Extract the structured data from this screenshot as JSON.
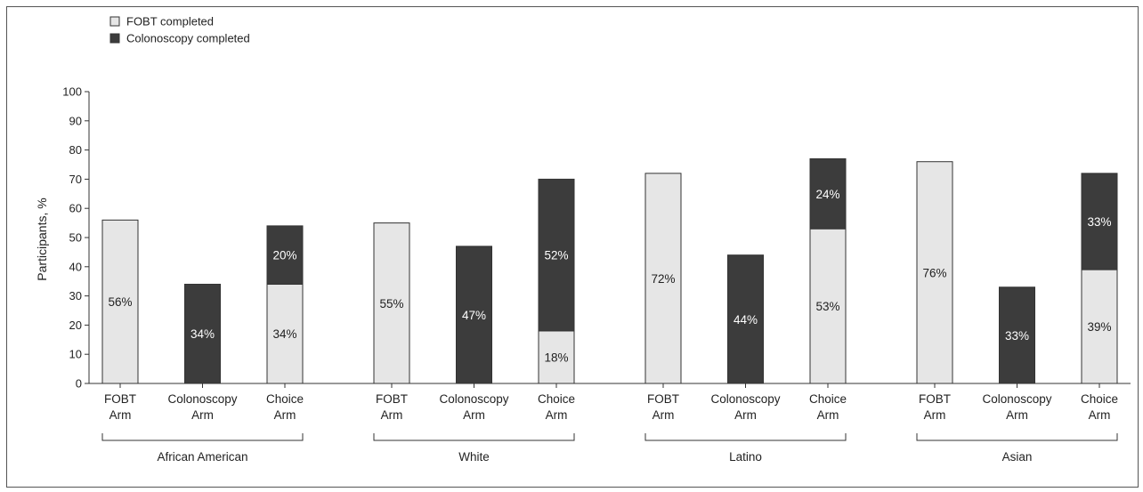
{
  "legend": {
    "items": [
      {
        "label": "FOBT completed",
        "color": "#e6e6e6"
      },
      {
        "label": "Colonoscopy completed",
        "color": "#3c3c3c"
      }
    ]
  },
  "colors": {
    "fobt": "#e6e6e6",
    "colonoscopy": "#3c3c3c",
    "axis": "#333333",
    "frame": "#555555"
  },
  "chart_data": {
    "type": "bar",
    "stacked": true,
    "ylabel": "Participants, %",
    "ylim": [
      0,
      100
    ],
    "yticks": [
      0,
      10,
      20,
      30,
      40,
      50,
      60,
      70,
      80,
      90,
      100
    ],
    "grid": false,
    "legend_position": "top-left",
    "groups": [
      {
        "name": "African American",
        "bars": [
          {
            "label": [
              "FOBT",
              "Arm"
            ],
            "fobt": 56,
            "colonoscopy": 0
          },
          {
            "label": [
              "Colonoscopy",
              "Arm"
            ],
            "fobt": 0,
            "colonoscopy": 34
          },
          {
            "label": [
              "Choice",
              "Arm"
            ],
            "fobt": 34,
            "colonoscopy": 20
          }
        ]
      },
      {
        "name": "White",
        "bars": [
          {
            "label": [
              "FOBT",
              "Arm"
            ],
            "fobt": 55,
            "colonoscopy": 0
          },
          {
            "label": [
              "Colonoscopy",
              "Arm"
            ],
            "fobt": 0,
            "colonoscopy": 47
          },
          {
            "label": [
              "Choice",
              "Arm"
            ],
            "fobt": 18,
            "colonoscopy": 52
          }
        ]
      },
      {
        "name": "Latino",
        "bars": [
          {
            "label": [
              "FOBT",
              "Arm"
            ],
            "fobt": 72,
            "colonoscopy": 0
          },
          {
            "label": [
              "Colonoscopy",
              "Arm"
            ],
            "fobt": 0,
            "colonoscopy": 44
          },
          {
            "label": [
              "Choice",
              "Arm"
            ],
            "fobt": 53,
            "colonoscopy": 24
          }
        ]
      },
      {
        "name": "Asian",
        "bars": [
          {
            "label": [
              "FOBT",
              "Arm"
            ],
            "fobt": 76,
            "colonoscopy": 0
          },
          {
            "label": [
              "Colonoscopy",
              "Arm"
            ],
            "fobt": 0,
            "colonoscopy": 33
          },
          {
            "label": [
              "Choice",
              "Arm"
            ],
            "fobt": 39,
            "colonoscopy": 33
          }
        ]
      }
    ]
  }
}
